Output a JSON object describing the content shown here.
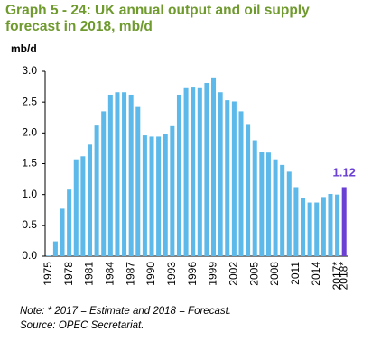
{
  "chart_data": {
    "type": "bar",
    "title": [
      "Graph 5 - 24: UK annual output and oil supply",
      "forecast in 2018, mb/d"
    ],
    "y_label": "mb/d",
    "categories": [
      "1975",
      null,
      null,
      "1978",
      null,
      null,
      "1981",
      null,
      null,
      "1984",
      null,
      null,
      "1987",
      null,
      null,
      "1990",
      null,
      null,
      "1993",
      null,
      null,
      "1996",
      null,
      null,
      "1999",
      null,
      null,
      "2002",
      null,
      null,
      "2005",
      null,
      null,
      "2008",
      null,
      null,
      "2011",
      null,
      null,
      "2014",
      null,
      null,
      "2017*",
      "2018*"
    ],
    "values": [
      0.01,
      0.24,
      0.77,
      1.08,
      1.57,
      1.62,
      1.81,
      2.12,
      2.35,
      2.62,
      2.66,
      2.66,
      2.62,
      2.42,
      1.96,
      1.94,
      1.94,
      1.98,
      2.11,
      2.62,
      2.74,
      2.75,
      2.74,
      2.81,
      2.9,
      2.66,
      2.53,
      2.51,
      2.35,
      2.13,
      1.88,
      1.69,
      1.68,
      1.57,
      1.48,
      1.37,
      1.12,
      0.95,
      0.87,
      0.87,
      0.96,
      1.01,
      1.0,
      1.12
    ],
    "color": "#5cb9e9",
    "highlight_last": true,
    "highlight_color": "#6a3fd3",
    "ylim": [
      0,
      3
    ],
    "yticks": [
      {
        "value": 0,
        "label": "0.0"
      },
      0.5,
      {
        "value": 1,
        "label": "1.0"
      },
      1.5,
      {
        "value": 2,
        "label": "2.0"
      },
      2.5,
      {
        "value": 3,
        "label": "3.0"
      }
    ],
    "grid": false,
    "notes": [
      "Note: * 2017 = Estimate and 2018 = Forecast.",
      "Source: OPEC Secretariat."
    ]
  }
}
